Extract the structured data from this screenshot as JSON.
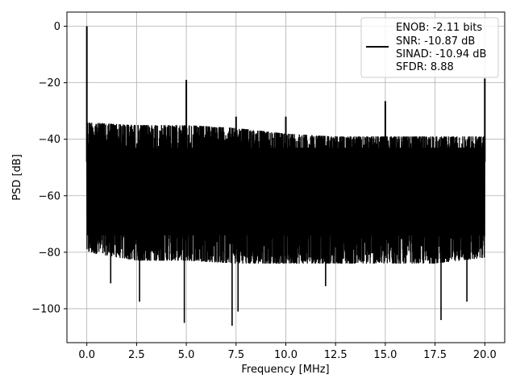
{
  "chart_data": {
    "type": "line",
    "xlabel": "Frequency [MHz]",
    "ylabel": "PSD [dB]",
    "xlim": [
      -1.0,
      21.0
    ],
    "ylim": [
      -112,
      5
    ],
    "grid": true,
    "x_ticks": [
      0.0,
      2.5,
      5.0,
      7.5,
      10.0,
      12.5,
      15.0,
      17.5,
      20.0
    ],
    "x_tick_labels": [
      "0.0",
      "2.5",
      "5.0",
      "7.5",
      "10.0",
      "12.5",
      "15.0",
      "17.5",
      "20.0"
    ],
    "y_ticks": [
      0,
      -20,
      -40,
      -60,
      -80,
      -100
    ],
    "y_tick_labels": [
      "0",
      "−20",
      "−40",
      "−60",
      "−80",
      "−100"
    ],
    "legend_position": "top-right",
    "series": [
      {
        "color": "#000000",
        "noise_floor": {
          "x_range": [
            0.0,
            20.0
          ],
          "upper_envelope": [
            [
              0.0,
              -34
            ],
            [
              2.5,
              -35
            ],
            [
              5.0,
              -35
            ],
            [
              7.5,
              -36
            ],
            [
              10.0,
              -38
            ],
            [
              12.5,
              -39
            ],
            [
              15.0,
              -39
            ],
            [
              17.5,
              -39
            ],
            [
              20.0,
              -39
            ]
          ],
          "lower_envelope": [
            [
              0.0,
              -80
            ],
            [
              2.5,
              -83
            ],
            [
              5.0,
              -83
            ],
            [
              7.5,
              -84
            ],
            [
              10.0,
              -84
            ],
            [
              12.5,
              -84
            ],
            [
              15.0,
              -84
            ],
            [
              17.5,
              -84
            ],
            [
              20.0,
              -82
            ]
          ]
        },
        "spikes": [
          {
            "x": 0.0,
            "y": 0
          },
          {
            "x": 5.0,
            "y": -19
          },
          {
            "x": 7.5,
            "y": -32
          },
          {
            "x": 10.0,
            "y": -32
          },
          {
            "x": 15.0,
            "y": -26.5
          },
          {
            "x": 20.0,
            "y": -18.5
          }
        ],
        "dips": [
          {
            "x": 2.65,
            "y": -97.5
          },
          {
            "x": 4.9,
            "y": -105
          },
          {
            "x": 7.3,
            "y": -106
          },
          {
            "x": 7.6,
            "y": -101
          },
          {
            "x": 17.8,
            "y": -104
          },
          {
            "x": 19.1,
            "y": -97.5
          },
          {
            "x": 1.2,
            "y": -91
          },
          {
            "x": 12.0,
            "y": -92
          }
        ]
      }
    ],
    "legend_lines": [
      "ENOB: -2.11 bits",
      "SNR: -10.87 dB",
      "SINAD: -10.94 dB",
      "SFDR: 8.88"
    ]
  }
}
